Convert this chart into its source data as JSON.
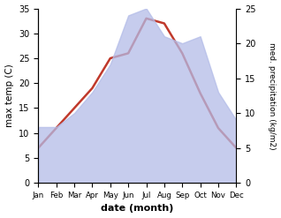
{
  "months": [
    "Jan",
    "Feb",
    "Mar",
    "Apr",
    "May",
    "Jun",
    "Jul",
    "Aug",
    "Sep",
    "Oct",
    "Nov",
    "Dec"
  ],
  "x": [
    1,
    2,
    3,
    4,
    5,
    6,
    7,
    8,
    9,
    10,
    11,
    12
  ],
  "max_temp": [
    7,
    11,
    15,
    19,
    25,
    26,
    33,
    32,
    26,
    18,
    11,
    7
  ],
  "precipitation": [
    8,
    8,
    10,
    13,
    17,
    24,
    25,
    21,
    20,
    21,
    13,
    9
  ],
  "temp_color": "#c0392b",
  "precip_color": "#b3bce8",
  "left_ylim": [
    0,
    35
  ],
  "right_ylim": [
    0,
    25
  ],
  "left_ylabel": "max temp (C)",
  "right_ylabel": "med. precipitation (kg/m2)",
  "xlabel": "date (month)",
  "bg_color": "#ffffff",
  "left_yticks": [
    0,
    5,
    10,
    15,
    20,
    25,
    30,
    35
  ],
  "right_yticks": [
    0,
    5,
    10,
    15,
    20,
    25
  ]
}
